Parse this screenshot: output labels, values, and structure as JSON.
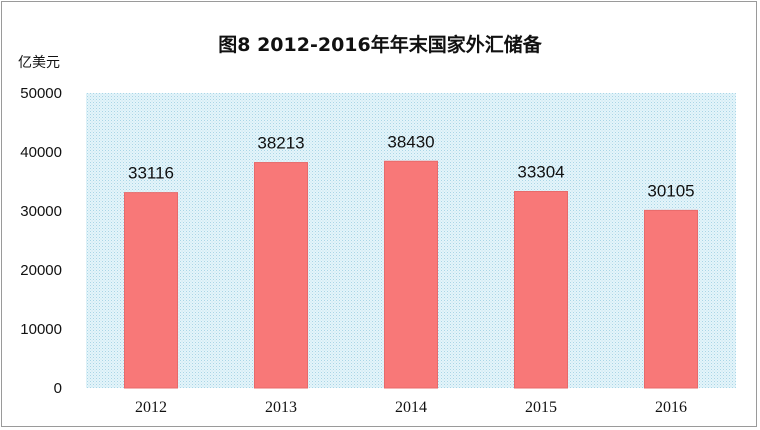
{
  "chart_data": {
    "type": "bar",
    "title": "图8   2012-2016年年末国家外汇储备",
    "ylabel": "亿美元",
    "xlabel": "",
    "categories": [
      "2012",
      "2013",
      "2014",
      "2015",
      "2016"
    ],
    "values": [
      33116,
      38213,
      38430,
      33304,
      30105
    ],
    "data_labels": [
      "33116",
      "38213",
      "38430",
      "33304",
      "30105"
    ],
    "yticks": [
      "0",
      "10000",
      "20000",
      "30000",
      "40000",
      "50000"
    ],
    "ylim": [
      0,
      50000
    ],
    "grid": false,
    "legend": "none",
    "colors": {
      "bar": "#f87878",
      "bar_edge": "#e86a6a",
      "plot_bg": "#d6eef6"
    }
  }
}
